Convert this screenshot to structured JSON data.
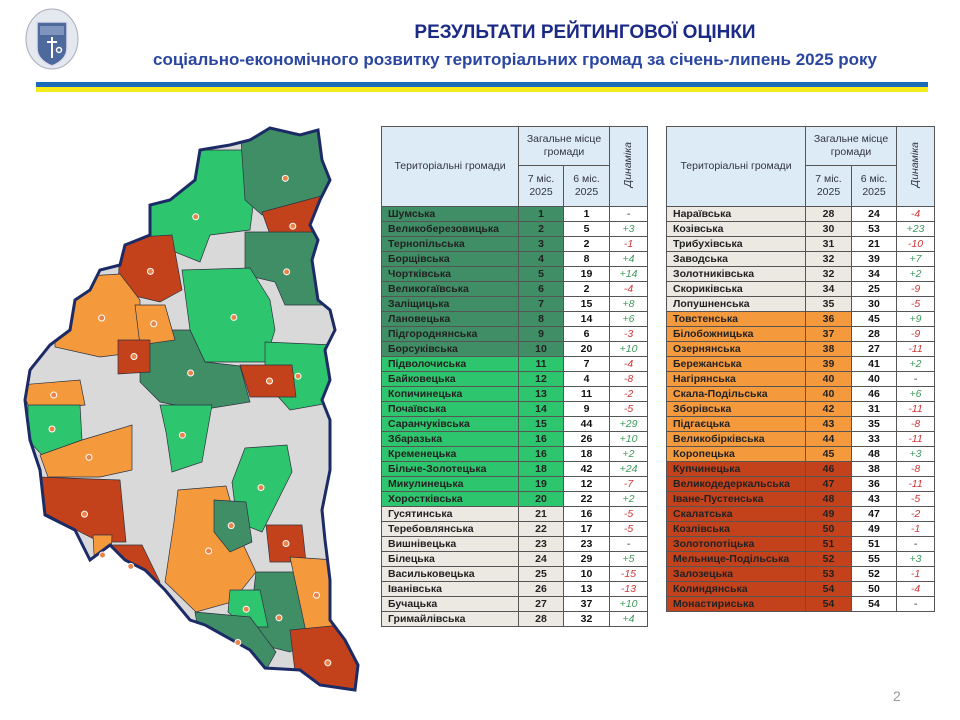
{
  "header": {
    "title": "РЕЗУЛЬТАТИ РЕЙТИНГОВОЇ ОЦІНКИ",
    "subtitle": "соціально-економічного розвитку територіальних громад за січень-липень 2025 року"
  },
  "table_header": {
    "name": "Територіальні громади",
    "place": "Загальне місце громади",
    "col7": "7 міс. 2025",
    "col6": "6 міс. 2025",
    "dynamics": "Динаміка"
  },
  "colors": {
    "dark_green": "#3f8e66",
    "bright_green": "#2dc56d",
    "beige": "#ece8e2",
    "orange": "#f59a3c",
    "red": "#c4421b",
    "positive": "#3d9a5c",
    "negative": "#d03535"
  },
  "left_table": [
    [
      "Шумська",
      "1",
      "1",
      "-",
      "dg"
    ],
    [
      "Великоберезовицька",
      "2",
      "5",
      "+3",
      "dg"
    ],
    [
      "Тернопільська",
      "3",
      "2",
      "-1",
      "dg"
    ],
    [
      "Борщівська",
      "4",
      "8",
      "+4",
      "dg"
    ],
    [
      "Чортківська",
      "5",
      "19",
      "+14",
      "dg"
    ],
    [
      "Великогаївська",
      "6",
      "2",
      "-4",
      "dg"
    ],
    [
      "Заліщицька",
      "7",
      "15",
      "+8",
      "dg"
    ],
    [
      "Лановецька",
      "8",
      "14",
      "+6",
      "dg"
    ],
    [
      "Підгороднянська",
      "9",
      "6",
      "-3",
      "dg"
    ],
    [
      "Борсуківська",
      "10",
      "20",
      "+10",
      "dg"
    ],
    [
      "Підволочиська",
      "11",
      "7",
      "-4",
      "bg"
    ],
    [
      "Байковецька",
      "12",
      "4",
      "-8",
      "bg"
    ],
    [
      "Копичинецька",
      "13",
      "11",
      "-2",
      "bg"
    ],
    [
      "Почаївська",
      "14",
      "9",
      "-5",
      "bg"
    ],
    [
      "Саранчуківська",
      "15",
      "44",
      "+29",
      "bg"
    ],
    [
      "Збаразька",
      "16",
      "26",
      "+10",
      "bg"
    ],
    [
      "Кременецька",
      "16",
      "18",
      "+2",
      "bg"
    ],
    [
      "Більче-Золотецька",
      "18",
      "42",
      "+24",
      "bg"
    ],
    [
      "Микулинецька",
      "19",
      "12",
      "-7",
      "bg"
    ],
    [
      "Хоростківська",
      "20",
      "22",
      "+2",
      "bg"
    ],
    [
      "Гусятинська",
      "21",
      "16",
      "-5",
      "be"
    ],
    [
      "Теребовлянська",
      "22",
      "17",
      "-5",
      "be"
    ],
    [
      "Вишнівецька",
      "23",
      "23",
      "-",
      "be"
    ],
    [
      "Білецька",
      "24",
      "29",
      "+5",
      "be"
    ],
    [
      "Васильковецька",
      "25",
      "10",
      "-15",
      "be"
    ],
    [
      "Іванівська",
      "26",
      "13",
      "-13",
      "be"
    ],
    [
      "Бучацька",
      "27",
      "37",
      "+10",
      "be"
    ],
    [
      "Гримайлівська",
      "28",
      "32",
      "+4",
      "be"
    ]
  ],
  "right_table": [
    [
      "Нараївська",
      "28",
      "24",
      "-4",
      "be"
    ],
    [
      "Козівська",
      "30",
      "53",
      "+23",
      "be"
    ],
    [
      "Трибухівська",
      "31",
      "21",
      "-10",
      "be"
    ],
    [
      "Заводська",
      "32",
      "39",
      "+7",
      "be"
    ],
    [
      "Золотниківська",
      "32",
      "34",
      "+2",
      "be"
    ],
    [
      "Скориківська",
      "34",
      "25",
      "-9",
      "be"
    ],
    [
      "Лопушненська",
      "35",
      "30",
      "-5",
      "be"
    ],
    [
      "Товстенська",
      "36",
      "45",
      "+9",
      "or"
    ],
    [
      "Білобожницька",
      "37",
      "28",
      "-9",
      "or"
    ],
    [
      "Озернянська",
      "38",
      "27",
      "-11",
      "or"
    ],
    [
      "Бережанська",
      "39",
      "41",
      "+2",
      "or"
    ],
    [
      "Нагірянська",
      "40",
      "40",
      "-",
      "or"
    ],
    [
      "Скала-Подільська",
      "40",
      "46",
      "+6",
      "or"
    ],
    [
      "Зборівська",
      "42",
      "31",
      "-11",
      "or"
    ],
    [
      "Підгаєцька",
      "43",
      "35",
      "-8",
      "or"
    ],
    [
      "Великобірківська",
      "44",
      "33",
      "-11",
      "or"
    ],
    [
      "Коропецька",
      "45",
      "48",
      "+3",
      "or"
    ],
    [
      "Купчинецька",
      "46",
      "38",
      "-8",
      "rd"
    ],
    [
      "Великодедеркальська",
      "47",
      "36",
      "-11",
      "rd"
    ],
    [
      "Іване-Пустенська",
      "48",
      "43",
      "-5",
      "rd"
    ],
    [
      "Скалатська",
      "49",
      "47",
      "-2",
      "rd"
    ],
    [
      "Козлівська",
      "50",
      "49",
      "-1",
      "rd"
    ],
    [
      "Золотопотіцька",
      "51",
      "51",
      "-",
      "rd"
    ],
    [
      "Мельнице-Подільська",
      "52",
      "55",
      "+3",
      "rd"
    ],
    [
      "Залозецька",
      "53",
      "52",
      "-1",
      "rd"
    ],
    [
      "Колиндянська",
      "54",
      "50",
      "-4",
      "rd"
    ],
    [
      "Монастириська",
      "54",
      "54",
      "-",
      "rd"
    ]
  ],
  "page_number": "2"
}
